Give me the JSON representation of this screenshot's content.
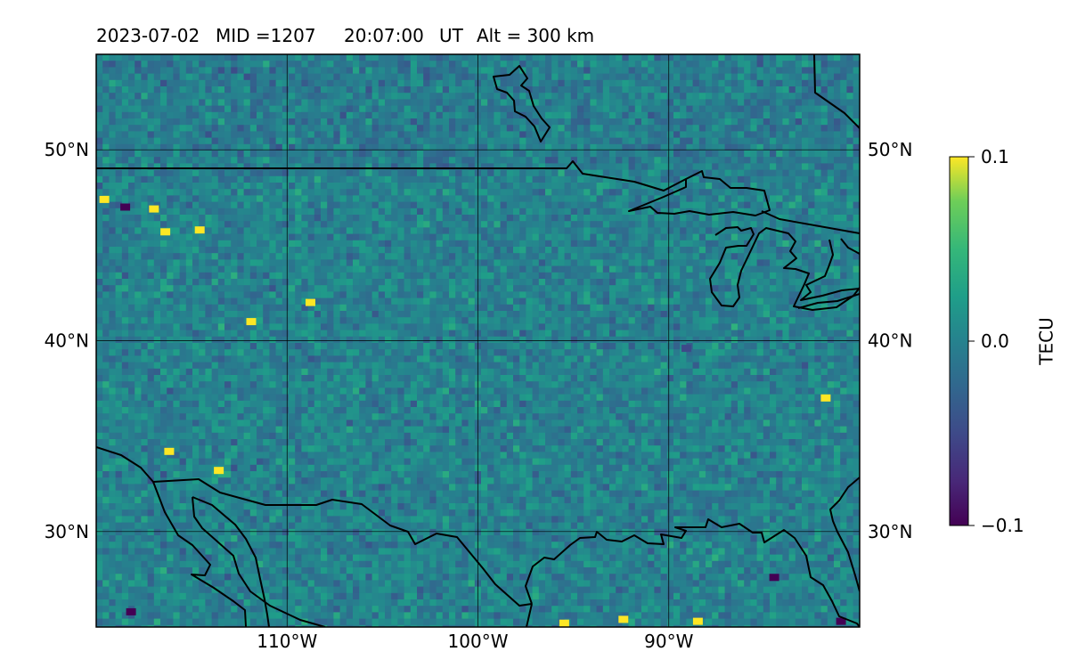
{
  "header": {
    "date": "2023-07-02",
    "mid": "MID =1207",
    "time": "20:07:00",
    "ut": "UT",
    "alt": "Alt = 300 km"
  },
  "map": {
    "projection": "plate-carree",
    "lon_range": [
      -120,
      -80
    ],
    "lat_range": [
      25,
      55
    ],
    "lon_ticks": [
      {
        "value": -110,
        "label": "110°W"
      },
      {
        "value": -100,
        "label": "100°W"
      },
      {
        "value": -90,
        "label": "90°W"
      }
    ],
    "lat_ticks": [
      {
        "value": 50,
        "label": "50°N"
      },
      {
        "value": 40,
        "label": "40°N"
      },
      {
        "value": 30,
        "label": "30°N"
      }
    ],
    "gridlines": true,
    "background_mean_color": "#21918c",
    "hotspots": [
      {
        "lon": -119.6,
        "lat": 47.4,
        "value": 0.1
      },
      {
        "lon": -117.0,
        "lat": 46.9,
        "value": 0.1
      },
      {
        "lon": -116.4,
        "lat": 45.7,
        "value": 0.1
      },
      {
        "lon": -114.6,
        "lat": 45.8,
        "value": 0.1
      },
      {
        "lon": -111.9,
        "lat": 41.0,
        "value": 0.1
      },
      {
        "lon": -108.8,
        "lat": 42.0,
        "value": 0.1
      },
      {
        "lon": -116.2,
        "lat": 34.2,
        "value": 0.1
      },
      {
        "lon": -113.6,
        "lat": 33.2,
        "value": 0.1
      },
      {
        "lon": -95.5,
        "lat": 25.2,
        "value": 0.1
      },
      {
        "lon": -92.4,
        "lat": 25.4,
        "value": 0.1
      },
      {
        "lon": -81.8,
        "lat": 37.0,
        "value": 0.1
      },
      {
        "lon": -88.5,
        "lat": 25.3,
        "value": 0.1
      },
      {
        "lon": -118.5,
        "lat": 47.0,
        "value": -0.1
      },
      {
        "lon": -84.5,
        "lat": 27.6,
        "value": -0.1
      },
      {
        "lon": -81.0,
        "lat": 25.3,
        "value": -0.1
      },
      {
        "lon": -118.2,
        "lat": 25.8,
        "value": -0.1
      },
      {
        "lon": -89.1,
        "lat": 39.6,
        "value": -0.05
      }
    ]
  },
  "colorbar": {
    "label": "TECU",
    "colormap": "viridis",
    "min": -0.1,
    "max": 0.1,
    "ticks": [
      {
        "value": 0.1,
        "label": "0.1"
      },
      {
        "value": 0.0,
        "label": "0.0"
      },
      {
        "value": -0.1,
        "label": "−0.1"
      }
    ]
  }
}
